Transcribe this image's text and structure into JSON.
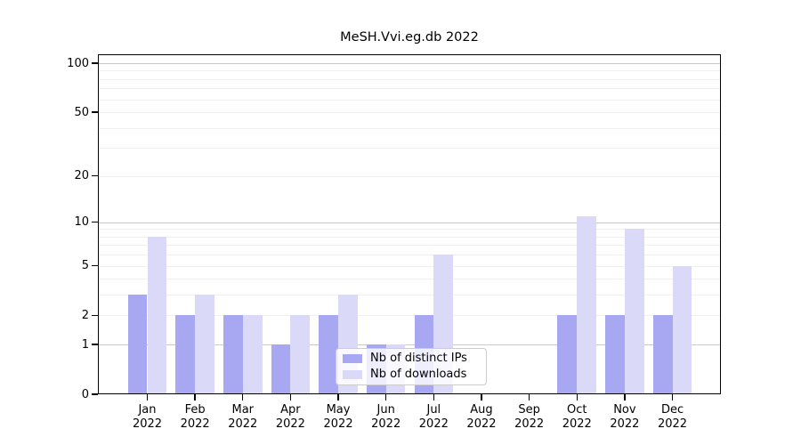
{
  "figure": {
    "title": "MeSH.Vvi.eg.db 2022"
  },
  "chart_data": {
    "type": "bar",
    "title": "MeSH.Vvi.eg.db 2022",
    "categories": [
      "Jan",
      "Feb",
      "Mar",
      "Apr",
      "May",
      "Jun",
      "Jul",
      "Aug",
      "Sep",
      "Oct",
      "Nov",
      "Dec"
    ],
    "category_year": "2022",
    "series": [
      {
        "name": "Nb of distinct IPs",
        "color": "#a8a8f2",
        "values": [
          3,
          2,
          2,
          1,
          2,
          1,
          2,
          0,
          0,
          2,
          2,
          2
        ]
      },
      {
        "name": "Nb of downloads",
        "color": "#dadaf8",
        "values": [
          8,
          3,
          2,
          2,
          3,
          1,
          6,
          0,
          0,
          11,
          9,
          5
        ]
      }
    ],
    "xlabel": "",
    "ylabel": "",
    "yscale": "log1p",
    "ylim": [
      0,
      113
    ],
    "yticks": [
      0,
      1,
      2,
      5,
      10,
      20,
      50,
      100
    ],
    "grid": {
      "on": true,
      "major_lines": [
        1,
        10,
        100
      ],
      "minor_lines": [
        2,
        3,
        4,
        5,
        6,
        7,
        8,
        9,
        20,
        30,
        40,
        50,
        60,
        70,
        80,
        90
      ]
    },
    "legend": {
      "position": "lower-center-inside",
      "entries": [
        "Nb of distinct IPs",
        "Nb of downloads"
      ]
    }
  },
  "colors": {
    "bar_distinct_ips": "#a8a8f2",
    "bar_downloads": "#dadaf8",
    "grid_major": "#c9c9c9",
    "grid_minor": "#f0f0f0",
    "spine": "#000000",
    "legend_border": "#cccccc"
  }
}
